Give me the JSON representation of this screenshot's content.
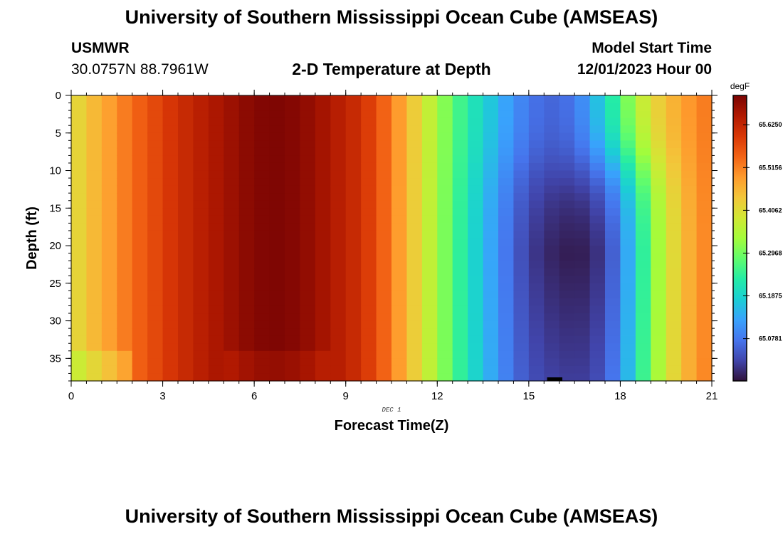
{
  "header": {
    "title": "University of Southern Mississippi Ocean Cube (AMSEAS)",
    "station": "USMWR",
    "coords": "30.0757N  88.7961W",
    "plot_title": "2-D Temperature at Depth",
    "model_start_label": "Model Start Time",
    "model_start_value": "12/01/2023 Hour 00"
  },
  "footer": {
    "title": "University of Southern Mississippi Ocean Cube (AMSEAS)"
  },
  "chart_data": {
    "type": "heatmap",
    "title": "2-D Temperature at Depth",
    "xlabel": "Forecast Time(Z)",
    "ylabel": "Depth (ft)",
    "x_date_label": "DEC 1",
    "xlim": [
      0,
      21
    ],
    "ylim": [
      0,
      38
    ],
    "x_ticks": [
      0,
      3,
      6,
      9,
      12,
      15,
      18,
      21
    ],
    "y_ticks": [
      0,
      5,
      10,
      15,
      20,
      25,
      30,
      35
    ],
    "colorbar": {
      "units": "degF",
      "range": [
        64.97,
        65.7
      ],
      "ticks": [
        65.0781,
        65.1875,
        65.2968,
        65.4062,
        65.5156,
        65.625
      ],
      "tick_labels": [
        "65.0781",
        "65.1875",
        "65.2968",
        "65.4062",
        "65.5156",
        "65.6250"
      ],
      "colors": [
        "#30123b",
        "#4145ab",
        "#4675ed",
        "#39a2fc",
        "#1bcfd4",
        "#24eca6",
        "#61fc6c",
        "#a4fc3b",
        "#d1e834",
        "#f3c63a",
        "#fe9b2d",
        "#f36315",
        "#d93806",
        "#b11901",
        "#7a0403"
      ]
    },
    "surface_profile_x": [
      0,
      0.5,
      1,
      1.5,
      2,
      2.5,
      3,
      3.5,
      4,
      4.5,
      5,
      5.5,
      6,
      6.5,
      7,
      7.5,
      8,
      8.5,
      9,
      9.5,
      10,
      10.5,
      11,
      11.5,
      12,
      12.5,
      13,
      13.5,
      14,
      14.5,
      15,
      15.5,
      16,
      16.5,
      17,
      17.5,
      18,
      18.5,
      19,
      19.5,
      20,
      20.5,
      21
    ],
    "surface_profile_degF": [
      65.4,
      65.44,
      65.47,
      65.5,
      65.54,
      65.56,
      65.59,
      65.61,
      65.63,
      65.645,
      65.66,
      65.675,
      65.69,
      65.695,
      65.695,
      65.685,
      65.67,
      65.65,
      65.63,
      65.61,
      65.57,
      65.52,
      65.46,
      65.4,
      65.34,
      65.28,
      65.23,
      65.19,
      65.15,
      65.11,
      65.08,
      65.06,
      65.06,
      65.08,
      65.13,
      65.2,
      65.27,
      65.35,
      65.41,
      65.45,
      65.48,
      65.51,
      65.53
    ],
    "subsurface_anomaly": {
      "center_hour": 16.5,
      "center_depth_ft": 21,
      "min_degF": 64.98,
      "note": "cold pocket below ~8 ft between hours 13 and 20"
    }
  }
}
